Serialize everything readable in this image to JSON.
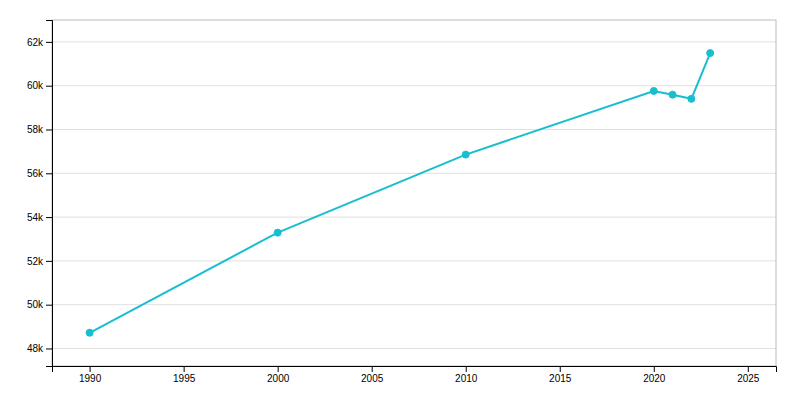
{
  "chart_data": {
    "type": "line",
    "x": [
      1990,
      2000,
      2010,
      2020,
      2021,
      2022,
      2023
    ],
    "values": [
      48718,
      53290,
      56853,
      59759,
      59591,
      59400,
      61489
    ],
    "color": "#17BECF",
    "marker": "circle",
    "xlim": [
      1988,
      2026.5
    ],
    "ylim": [
      47200,
      63000
    ],
    "xticks": [
      1990,
      1995,
      2000,
      2005,
      2010,
      2015,
      2020,
      2025
    ],
    "yticks": [
      {
        "value": 48000,
        "label": "48k"
      },
      {
        "value": 50000,
        "label": "50k"
      },
      {
        "value": 52000,
        "label": "52k"
      },
      {
        "value": 54000,
        "label": "54k"
      },
      {
        "value": 56000,
        "label": "56k"
      },
      {
        "value": 58000,
        "label": "58k"
      },
      {
        "value": 60000,
        "label": "60k"
      },
      {
        "value": 62000,
        "label": "62k"
      }
    ],
    "grid": true
  }
}
